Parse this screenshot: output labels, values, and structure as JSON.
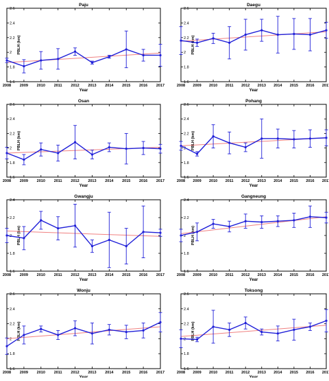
{
  "colors": {
    "series": "#1f1fd8",
    "trend": "#f08080",
    "axis": "#000000"
  },
  "chart_data": [
    {
      "type": "line",
      "title": "Paju",
      "xlabel": "Year",
      "ylabel": "PBLH (km)",
      "x": [
        2008,
        2009,
        2010,
        2011,
        2012,
        2013,
        2014,
        2015,
        2016,
        2017
      ],
      "xlim": [
        2008,
        2017
      ],
      "ylim": [
        1.6,
        2.6
      ],
      "yticks": [
        1.6,
        1.8,
        2,
        2.2,
        2.4,
        2.6
      ],
      "grid": false,
      "values": [
        1.89,
        1.81,
        1.89,
        1.91,
        2.01,
        1.86,
        1.94,
        2.04,
        1.96,
        1.96
      ],
      "errors": [
        0.03,
        0.09,
        0.12,
        0.14,
        0.05,
        0.02,
        0.02,
        0.25,
        0.08,
        0.15
      ],
      "trend": [
        1.86,
        1.99
      ]
    },
    {
      "type": "line",
      "title": "Daegu",
      "xlabel": "Year",
      "ylabel": "PBLH (km)",
      "x": [
        2008,
        2009,
        2010,
        2011,
        2012,
        2013,
        2014,
        2015,
        2016,
        2017
      ],
      "xlim": [
        2008,
        2017
      ],
      "ylim": [
        1.6,
        2.6
      ],
      "yticks": [
        1.6,
        1.8,
        2,
        2.2,
        2.4,
        2.6
      ],
      "grid": false,
      "values": [
        2.16,
        2.13,
        2.19,
        2.13,
        2.24,
        2.3,
        2.24,
        2.25,
        2.24,
        2.3
      ],
      "errors": [
        0.19,
        0.05,
        0.07,
        0.22,
        0.21,
        0.15,
        0.25,
        0.21,
        0.22,
        0.11
      ],
      "trend": [
        2.15,
        2.28
      ]
    },
    {
      "type": "line",
      "title": "Osan",
      "xlabel": "Year",
      "ylabel": "PBLH (km)",
      "x": [
        2008,
        2009,
        2010,
        2011,
        2012,
        2013,
        2014,
        2015,
        2016,
        2017
      ],
      "xlim": [
        2008,
        2017
      ],
      "ylim": [
        1.6,
        2.6
      ],
      "yticks": [
        1.6,
        1.8,
        2,
        2.2,
        2.4,
        2.6
      ],
      "grid": false,
      "values": [
        1.93,
        1.84,
        1.98,
        1.93,
        2.08,
        1.91,
        2.01,
        1.99,
        2.0,
        1.99
      ],
      "errors": [
        0.08,
        0.07,
        0.09,
        0.11,
        0.23,
        0.06,
        0.06,
        0.21,
        0.09,
        0.06
      ],
      "trend": [
        1.93,
        2.01
      ]
    },
    {
      "type": "line",
      "title": "Pohang",
      "xlabel": "Year",
      "ylabel": "PBLH (km)",
      "x": [
        2008,
        2009,
        2010,
        2011,
        2012,
        2013,
        2014,
        2015,
        2016,
        2017
      ],
      "xlim": [
        2008,
        2017
      ],
      "ylim": [
        1.6,
        2.6
      ],
      "yticks": [
        1.6,
        1.8,
        2,
        2.2,
        2.4,
        2.6
      ],
      "grid": false,
      "values": [
        2.03,
        1.92,
        2.16,
        2.07,
        2.01,
        2.13,
        2.13,
        2.12,
        2.13,
        2.14
      ],
      "errors": [
        0.06,
        0.03,
        0.16,
        0.15,
        0.06,
        0.27,
        0.13,
        0.12,
        0.12,
        0.11
      ],
      "trend": [
        2.03,
        2.14
      ]
    },
    {
      "type": "line",
      "title": "Gwangju",
      "xlabel": "Year",
      "ylabel": "PBLH (km)",
      "x": [
        2008,
        2009,
        2010,
        2011,
        2012,
        2013,
        2014,
        2015,
        2016,
        2017
      ],
      "xlim": [
        2008,
        2017
      ],
      "ylim": [
        1.6,
        2.4
      ],
      "yticks": [
        1.6,
        1.8,
        2,
        2.2,
        2.4
      ],
      "grid": false,
      "values": [
        2.0,
        1.97,
        2.17,
        2.08,
        2.11,
        1.88,
        1.95,
        1.88,
        2.04,
        2.03
      ],
      "errors": [
        0.08,
        0.13,
        0.1,
        0.13,
        0.24,
        0.07,
        0.31,
        0.2,
        0.29,
        0.04
      ],
      "trend": [
        2.05,
        1.99
      ]
    },
    {
      "type": "line",
      "title": "Gangneung",
      "xlabel": "Year",
      "ylabel": "PBLH (km)",
      "x": [
        2008,
        2009,
        2010,
        2011,
        2012,
        2013,
        2014,
        2015,
        2016,
        2017
      ],
      "xlim": [
        2008,
        2017
      ],
      "ylim": [
        1.6,
        2.4
      ],
      "yticks": [
        1.6,
        1.8,
        2,
        2.2,
        2.4
      ],
      "grid": false,
      "values": [
        2.0,
        2.04,
        2.13,
        2.1,
        2.16,
        2.15,
        2.16,
        2.17,
        2.21,
        2.2
      ],
      "errors": [
        0.07,
        0.1,
        0.05,
        0.06,
        0.08,
        0.07,
        0.06,
        0.08,
        0.12,
        0.06
      ],
      "trend": [
        2.02,
        2.21
      ]
    },
    {
      "type": "line",
      "title": "Wonju",
      "xlabel": "Year",
      "ylabel": "PBLH (km)",
      "x": [
        2008,
        2009,
        2010,
        2011,
        2012,
        2013,
        2014,
        2015,
        2016,
        2017
      ],
      "xlim": [
        2008,
        2017
      ],
      "ylim": [
        1.6,
        2.6
      ],
      "yticks": [
        1.6,
        1.8,
        2,
        2.2,
        2.4,
        2.6
      ],
      "grid": false,
      "values": [
        1.9,
        2.05,
        2.13,
        2.05,
        2.14,
        2.07,
        2.12,
        2.09,
        2.11,
        2.22
      ],
      "errors": [
        0.11,
        0.12,
        0.04,
        0.06,
        0.1,
        0.14,
        0.07,
        0.09,
        0.1,
        0.13
      ],
      "trend": [
        2.0,
        2.16
      ]
    },
    {
      "type": "line",
      "title": "Toksong",
      "xlabel": "Year",
      "ylabel": "PBLH (km)",
      "x": [
        2008,
        2009,
        2010,
        2011,
        2012,
        2013,
        2014,
        2015,
        2016,
        2017
      ],
      "xlim": [
        2008,
        2017
      ],
      "ylim": [
        1.6,
        2.6
      ],
      "yticks": [
        1.6,
        1.8,
        2,
        2.2,
        2.4,
        2.6
      ],
      "grid": false,
      "values": [
        2.0,
        1.99,
        2.16,
        2.12,
        2.21,
        2.09,
        2.07,
        2.12,
        2.16,
        2.24
      ],
      "errors": [
        0.12,
        0.03,
        0.22,
        0.09,
        0.08,
        0.04,
        0.1,
        0.14,
        0.05,
        0.15
      ],
      "trend": [
        2.03,
        2.18
      ]
    }
  ]
}
